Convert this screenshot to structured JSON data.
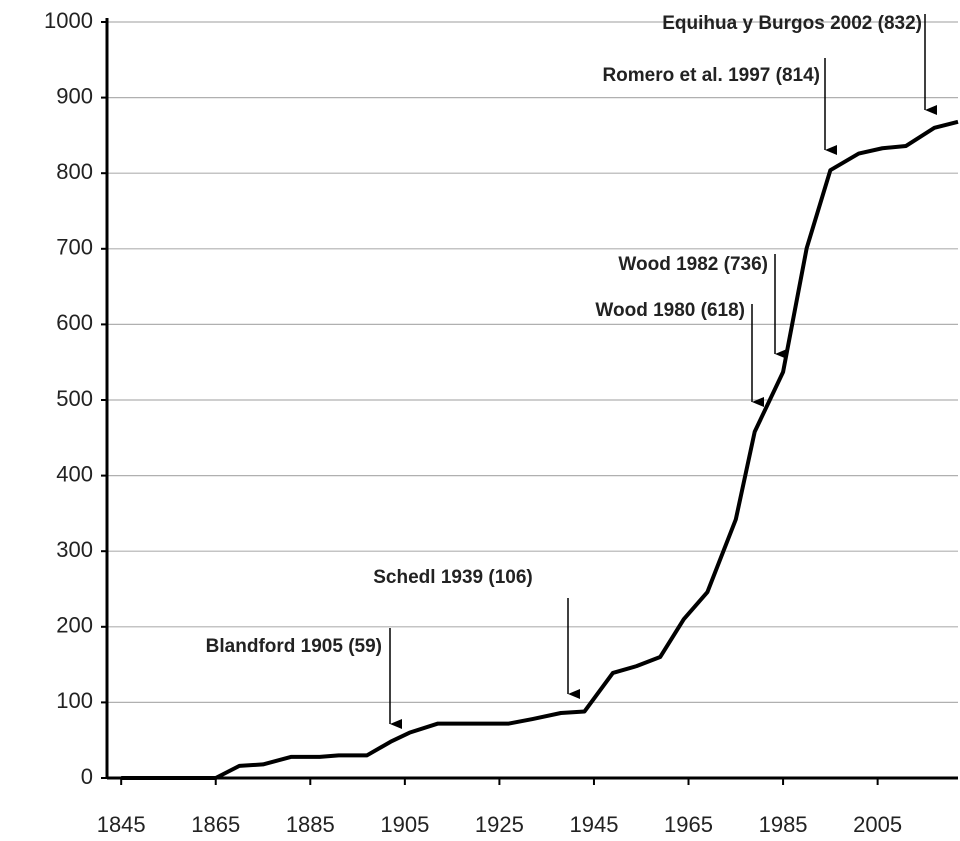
{
  "chart_data": {
    "type": "line",
    "x": [
      1845,
      1865,
      1870,
      1875,
      1881,
      1887,
      1891,
      1897,
      1902,
      1906,
      1912,
      1927,
      1932,
      1938,
      1943,
      1949,
      1954,
      1959,
      1964,
      1969,
      1975,
      1979,
      1985,
      1990,
      1995,
      2001,
      2006,
      2011,
      2017,
      2022
    ],
    "series": [
      {
        "color": "#000000",
        "values": [
          0,
          0,
          16,
          18,
          28,
          28,
          30,
          30,
          48,
          60,
          72,
          72,
          78,
          86,
          88,
          139,
          148,
          160,
          210,
          246,
          342,
          458,
          537,
          701,
          804,
          826,
          833,
          836,
          860,
          868
        ]
      }
    ],
    "xlim": [
      1842,
      2022
    ],
    "xticks": [
      1845,
      1865,
      1885,
      1905,
      1925,
      1945,
      1965,
      1985,
      2005
    ],
    "ylim": [
      0,
      1000
    ],
    "yticks": [
      0,
      100,
      200,
      300,
      400,
      500,
      600,
      700,
      800,
      900,
      1000
    ],
    "grid": true,
    "annotations": [
      "Equihua y Burgos 2002 (832)",
      "Romero et al. 1997 (814)",
      "Wood 1982 (736)",
      "Wood 1980 (618)",
      "Schedl 1939 (106)",
      "Blandford 1905 (59)"
    ]
  }
}
